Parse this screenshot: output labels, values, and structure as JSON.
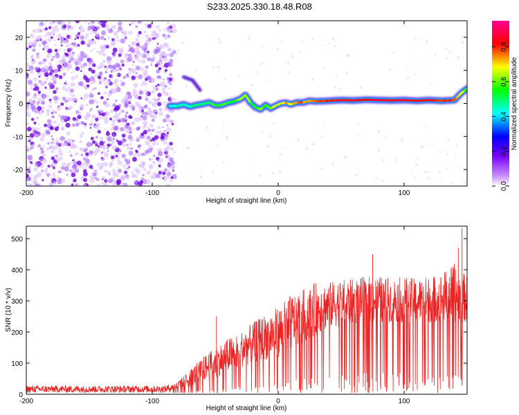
{
  "title": "S233.2025.330.18.48.R08",
  "chart_data": [
    {
      "type": "heatmap",
      "xlabel": "Height of straight line (km)",
      "ylabel": "Frequency (Hz)",
      "xlim": [
        -200,
        150
      ],
      "ylim": [
        -25,
        25
      ],
      "xticks": [
        -200,
        -100,
        0,
        100
      ],
      "xtick_labels": [
        "-200",
        "-100",
        "0",
        "100"
      ],
      "yticks": [
        20,
        10,
        0,
        -10,
        -20
      ],
      "ytick_labels": [
        "20",
        "10",
        "0",
        "-10",
        "-20"
      ],
      "colorbar": {
        "label": "Normalized spectral amplitude",
        "range": [
          0,
          0.95
        ],
        "ticks": [
          0.0,
          0.2,
          0.4,
          0.6,
          0.8
        ],
        "tick_labels": [
          "0.0",
          "0.2",
          "0.4",
          "0.6",
          "0.8"
        ],
        "colors": [
          "#ffffff",
          "#8a00ff",
          "#0000ff",
          "#00ffff",
          "#00ff00",
          "#ffff00",
          "#ff0000",
          "#ff00aa"
        ]
      },
      "noise_region_x": [
        -200,
        -86
      ],
      "ridge": {
        "x": [
          -86,
          -80,
          -75,
          -70,
          -65,
          -60,
          -55,
          -50,
          -45,
          -40,
          -35,
          -30,
          -26,
          -22,
          -18,
          -14,
          -10,
          -6,
          -2,
          2,
          6,
          10,
          15,
          20,
          25,
          30,
          40,
          50,
          60,
          70,
          80,
          90,
          100,
          110,
          120,
          130,
          140,
          145,
          150
        ],
        "freq": [
          -0.8,
          -0.8,
          -0.3,
          -1.0,
          -0.5,
          -0.2,
          0.3,
          -0.6,
          -0.5,
          0.2,
          0.6,
          1.3,
          2.5,
          0.2,
          -1.2,
          -1.8,
          -0.5,
          -1.5,
          -0.7,
          0.0,
          0.2,
          -0.3,
          0.3,
          0.3,
          0.8,
          0.6,
          0.8,
          1.0,
          0.9,
          1.1,
          1.0,
          0.9,
          1.0,
          0.8,
          1.0,
          0.8,
          1.0,
          3.0,
          4.5
        ],
        "amplitude": [
          0.45,
          0.5,
          0.45,
          0.5,
          0.55,
          0.5,
          0.55,
          0.6,
          0.6,
          0.55,
          0.6,
          0.65,
          0.7,
          0.6,
          0.6,
          0.65,
          0.6,
          0.65,
          0.7,
          0.7,
          0.75,
          0.75,
          0.8,
          0.8,
          0.8,
          0.85,
          0.85,
          0.9,
          0.9,
          0.9,
          0.9,
          0.9,
          0.9,
          0.9,
          0.85,
          0.85,
          0.85,
          0.7,
          0.6
        ]
      },
      "secondary_feature": {
        "x": [
          -75,
          -68,
          -62
        ],
        "freq": [
          8,
          7,
          4
        ]
      }
    },
    {
      "type": "line",
      "xlabel": "Height of straight line (km)",
      "ylabel": "SNR (10 * v/v)",
      "xlim": [
        -200,
        150
      ],
      "ylim": [
        0,
        540
      ],
      "xticks": [
        -200,
        -100,
        0,
        100
      ],
      "xtick_labels": [
        "-200",
        "-100",
        "0",
        "100"
      ],
      "yticks": [
        0,
        100,
        200,
        300,
        400,
        500
      ],
      "ytick_labels": [
        "0",
        "100",
        "200",
        "300",
        "400",
        "500"
      ],
      "color": "#ee2020",
      "series_envelope": {
        "x": [
          -200,
          -150,
          -100,
          -90,
          -80,
          -70,
          -60,
          -50,
          -40,
          -30,
          -20,
          -10,
          0,
          10,
          20,
          30,
          40,
          50,
          60,
          70,
          80,
          90,
          100,
          110,
          120,
          130,
          140,
          150
        ],
        "baseline": [
          10,
          10,
          10,
          10,
          15,
          25,
          40,
          55,
          70,
          85,
          100,
          110,
          120,
          140,
          160,
          190,
          210,
          220,
          225,
          230,
          230,
          230,
          230,
          230,
          230,
          230,
          230,
          230
        ],
        "peak": [
          25,
          25,
          25,
          25,
          40,
          80,
          120,
          150,
          180,
          200,
          230,
          260,
          280,
          320,
          340,
          360,
          360,
          370,
          370,
          380,
          380,
          375,
          380,
          370,
          380,
          390,
          420,
          380
        ]
      },
      "spikes": [
        {
          "x": -49,
          "y": 250
        },
        {
          "x": 146,
          "y": 535
        },
        {
          "x": 143,
          "y": 470
        },
        {
          "x": 75,
          "y": 450
        }
      ]
    }
  ]
}
